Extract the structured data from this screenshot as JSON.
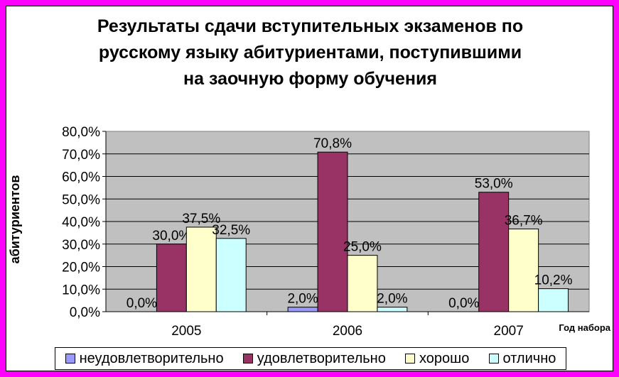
{
  "chart_data": {
    "type": "bar",
    "title_lines": [
      "Результаты сдачи вступительных экзаменов по",
      "русскому языку абитуриентами, поступившими",
      "на заочную форму обучения"
    ],
    "xlabel": "Год набора",
    "ylabel": "абитуриентов",
    "ylim": [
      0,
      80
    ],
    "yticks": [
      "0,0%",
      "10,0%",
      "20,0%",
      "30,0%",
      "40,0%",
      "50,0%",
      "60,0%",
      "70,0%",
      "80,0%"
    ],
    "grid": true,
    "legend_position": "bottom",
    "categories": [
      "2005",
      "2006",
      "2007"
    ],
    "series": [
      {
        "name": "неудовлетворительно",
        "color": "#9999ff",
        "values": [
          0.0,
          2.0,
          0.0
        ],
        "labels": [
          "0,0%",
          "2,0%",
          "0,0%"
        ]
      },
      {
        "name": "удовлетворительно",
        "color": "#993366",
        "values": [
          30.0,
          70.8,
          53.0
        ],
        "labels": [
          "30,0%",
          "70,8%",
          "53,0%"
        ]
      },
      {
        "name": "хорошо",
        "color": "#ffffcc",
        "values": [
          37.5,
          25.0,
          36.7
        ],
        "labels": [
          "37,5%",
          "25,0%",
          "36,7%"
        ]
      },
      {
        "name": "отлично",
        "color": "#ccffff",
        "values": [
          32.5,
          2.0,
          10.2
        ],
        "labels": [
          "32,5%",
          "2,0%",
          "10,2%"
        ]
      }
    ]
  },
  "colors": {
    "outer_border": "#ff00ff",
    "plot_background": "#c0c0c0"
  }
}
